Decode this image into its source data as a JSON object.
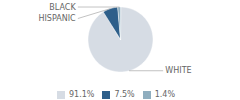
{
  "chart_data": {
    "type": "pie",
    "categories": [
      "WHITE",
      "HISPANIC",
      "BLACK"
    ],
    "values": [
      91.1,
      7.5,
      1.4
    ],
    "value_labels": [
      "91.1%",
      "7.5%",
      "1.4%"
    ],
    "colors": [
      "#d6dce4",
      "#2e5f8a",
      "#8faebf"
    ],
    "legend": "bottom"
  }
}
